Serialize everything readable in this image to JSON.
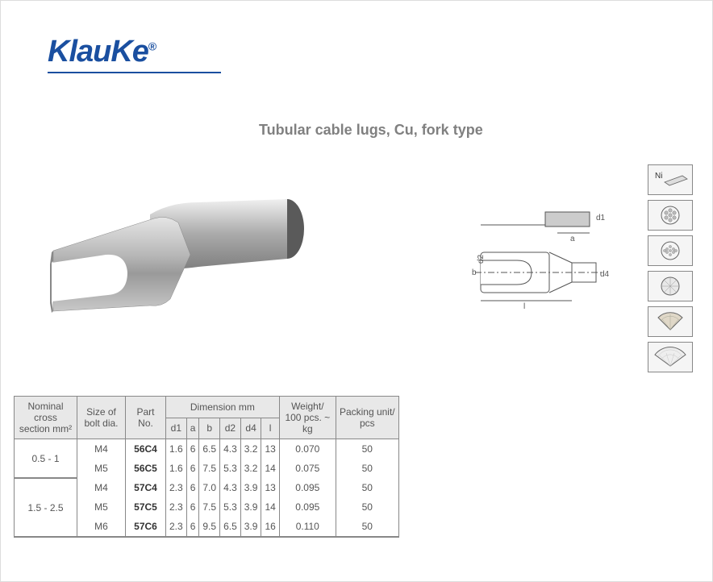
{
  "brand": "KlauKe",
  "brand_reg": "®",
  "title": "Tubular cable lugs, Cu, fork type",
  "icons": {
    "ni": "Ni"
  },
  "headers": {
    "nominal": "Nominal cross section mm²",
    "bolt": "Size of bolt dia.",
    "part": "Part No.",
    "dimension": "Dimension mm",
    "d1": "d1",
    "a": "a",
    "b": "b",
    "d2": "d2",
    "d4": "d4",
    "l": "l",
    "weight": "Weight/ 100 pcs. ~ kg",
    "packing": "Packing unit/ pcs"
  },
  "groups": [
    {
      "nominal": "0.5 - 1",
      "rows": [
        {
          "bolt": "M4",
          "part": "56C4",
          "d1": "1.6",
          "a": "6",
          "b": "6.5",
          "d2": "4.3",
          "d4": "3.2",
          "l": "13",
          "weight": "0.070",
          "packing": "50"
        },
        {
          "bolt": "M5",
          "part": "56C5",
          "d1": "1.6",
          "a": "6",
          "b": "7.5",
          "d2": "5.3",
          "d4": "3.2",
          "l": "14",
          "weight": "0.075",
          "packing": "50"
        }
      ]
    },
    {
      "nominal": "1.5 - 2.5",
      "rows": [
        {
          "bolt": "M4",
          "part": "57C4",
          "d1": "2.3",
          "a": "6",
          "b": "7.0",
          "d2": "4.3",
          "d4": "3.9",
          "l": "13",
          "weight": "0.095",
          "packing": "50"
        },
        {
          "bolt": "M5",
          "part": "57C5",
          "d1": "2.3",
          "a": "6",
          "b": "7.5",
          "d2": "5.3",
          "d4": "3.9",
          "l": "14",
          "weight": "0.095",
          "packing": "50"
        },
        {
          "bolt": "M6",
          "part": "57C6",
          "d1": "2.3",
          "a": "6",
          "b": "9.5",
          "d2": "6.5",
          "d4": "3.9",
          "l": "16",
          "weight": "0.110",
          "packing": "50"
        }
      ]
    }
  ],
  "colors": {
    "brand": "#1a4fa0",
    "text": "#555555",
    "header_bg": "#e8e8e8",
    "border": "#888888"
  }
}
